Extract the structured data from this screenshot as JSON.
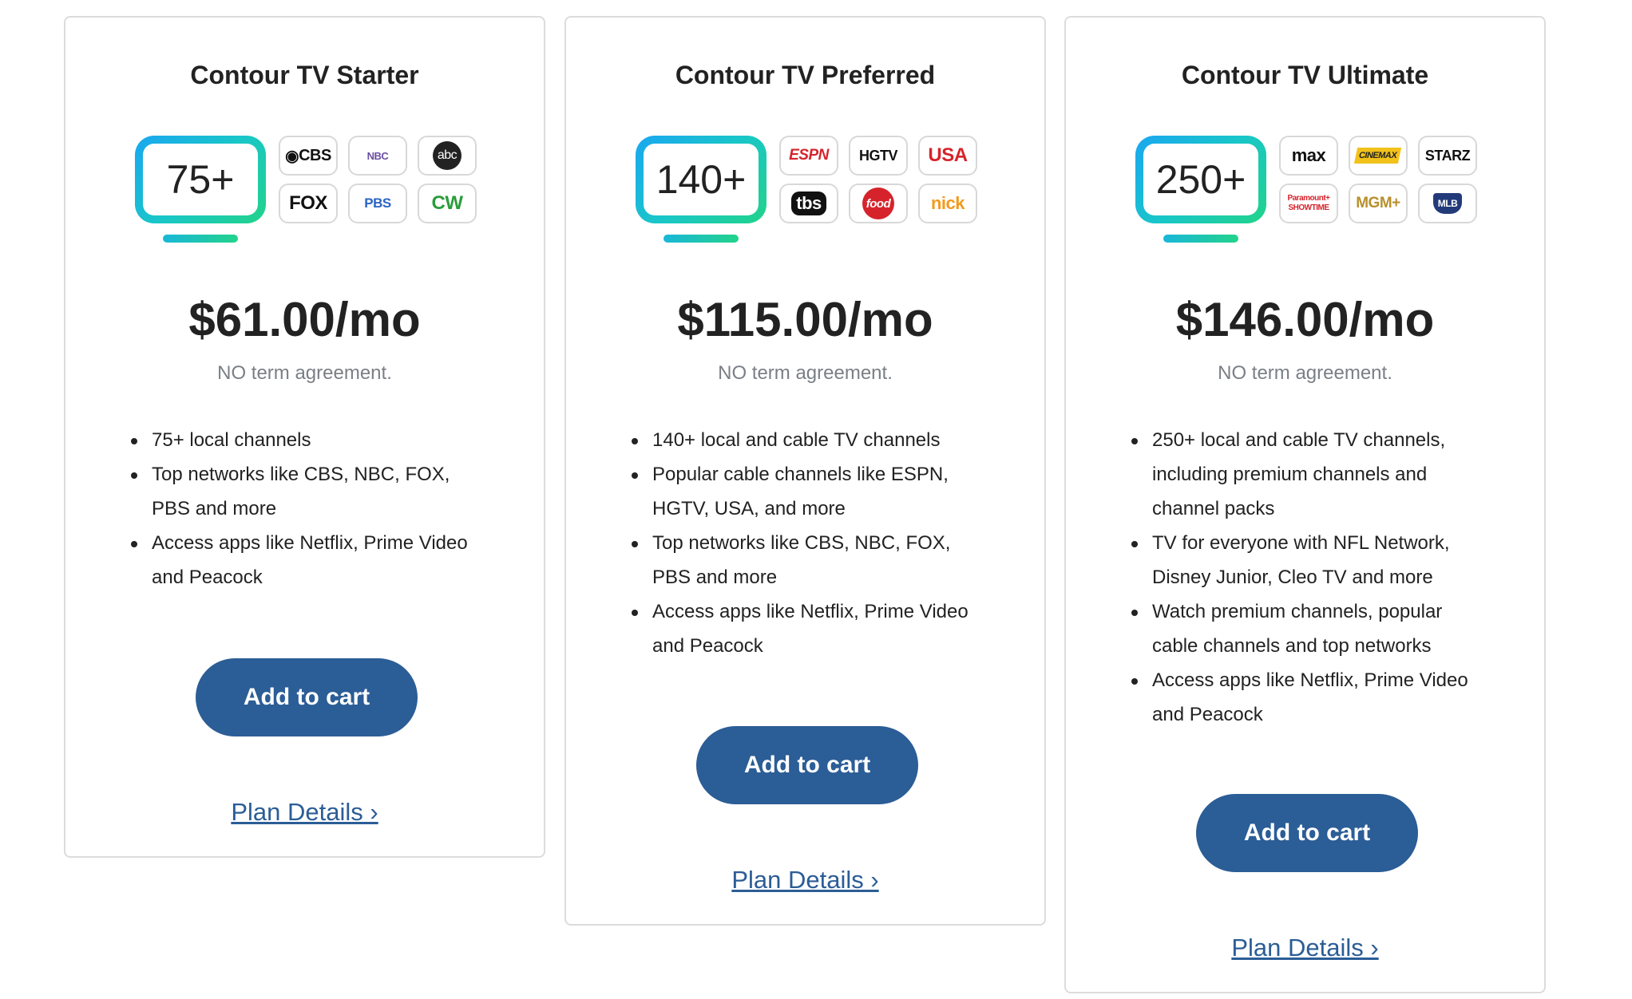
{
  "plans": [
    {
      "title": "Contour TV Starter",
      "channel_count": "75+",
      "logos": [
        "CBS",
        "NBC",
        "abc",
        "FOX",
        "PBS",
        "CW"
      ],
      "price": "$61.00/mo",
      "term": "NO term agreement.",
      "features": [
        "75+ local channels",
        "Top networks like CBS, NBC, FOX, PBS and more",
        "Access apps like Netflix, Prime Video and Peacock"
      ],
      "cart_label": "Add to cart",
      "details_label": "Plan Details ›"
    },
    {
      "title": "Contour TV Preferred",
      "channel_count": "140+",
      "logos": [
        "ESPN",
        "HGTV",
        "USA",
        "tbs",
        "food",
        "nick"
      ],
      "price": "$115.00/mo",
      "term": "NO term agreement.",
      "features": [
        "140+ local and cable TV channels",
        "Popular cable channels like ESPN, HGTV, USA, and more",
        "Top networks like CBS, NBC, FOX, PBS and more",
        "Access apps like Netflix, Prime Video and Peacock"
      ],
      "cart_label": "Add to cart",
      "details_label": "Plan Details ›"
    },
    {
      "title": "Contour TV Ultimate",
      "channel_count": "250+",
      "logos": [
        "max",
        "CINEMAX",
        "STARZ",
        "Paramount+ SHOWTIME",
        "MGM+",
        "MLB"
      ],
      "price": "$146.00/mo",
      "term": "NO term agreement.",
      "features": [
        "250+ local and cable TV channels, including premium channels and channel packs",
        "TV for everyone with NFL Network, Disney Junior, Cleo TV and more",
        "Watch premium channels, popular cable channels and top networks",
        "Access apps like Netflix, Prime Video and Peacock"
      ],
      "cart_label": "Add to cart",
      "details_label": "Plan Details ›"
    }
  ],
  "colors": {
    "button": "#2b5d96",
    "link": "#2b5d96",
    "card_border": "#dcdcdc",
    "tv_gradient_start": "#1aa7f0",
    "tv_gradient_end": "#22d38a"
  }
}
